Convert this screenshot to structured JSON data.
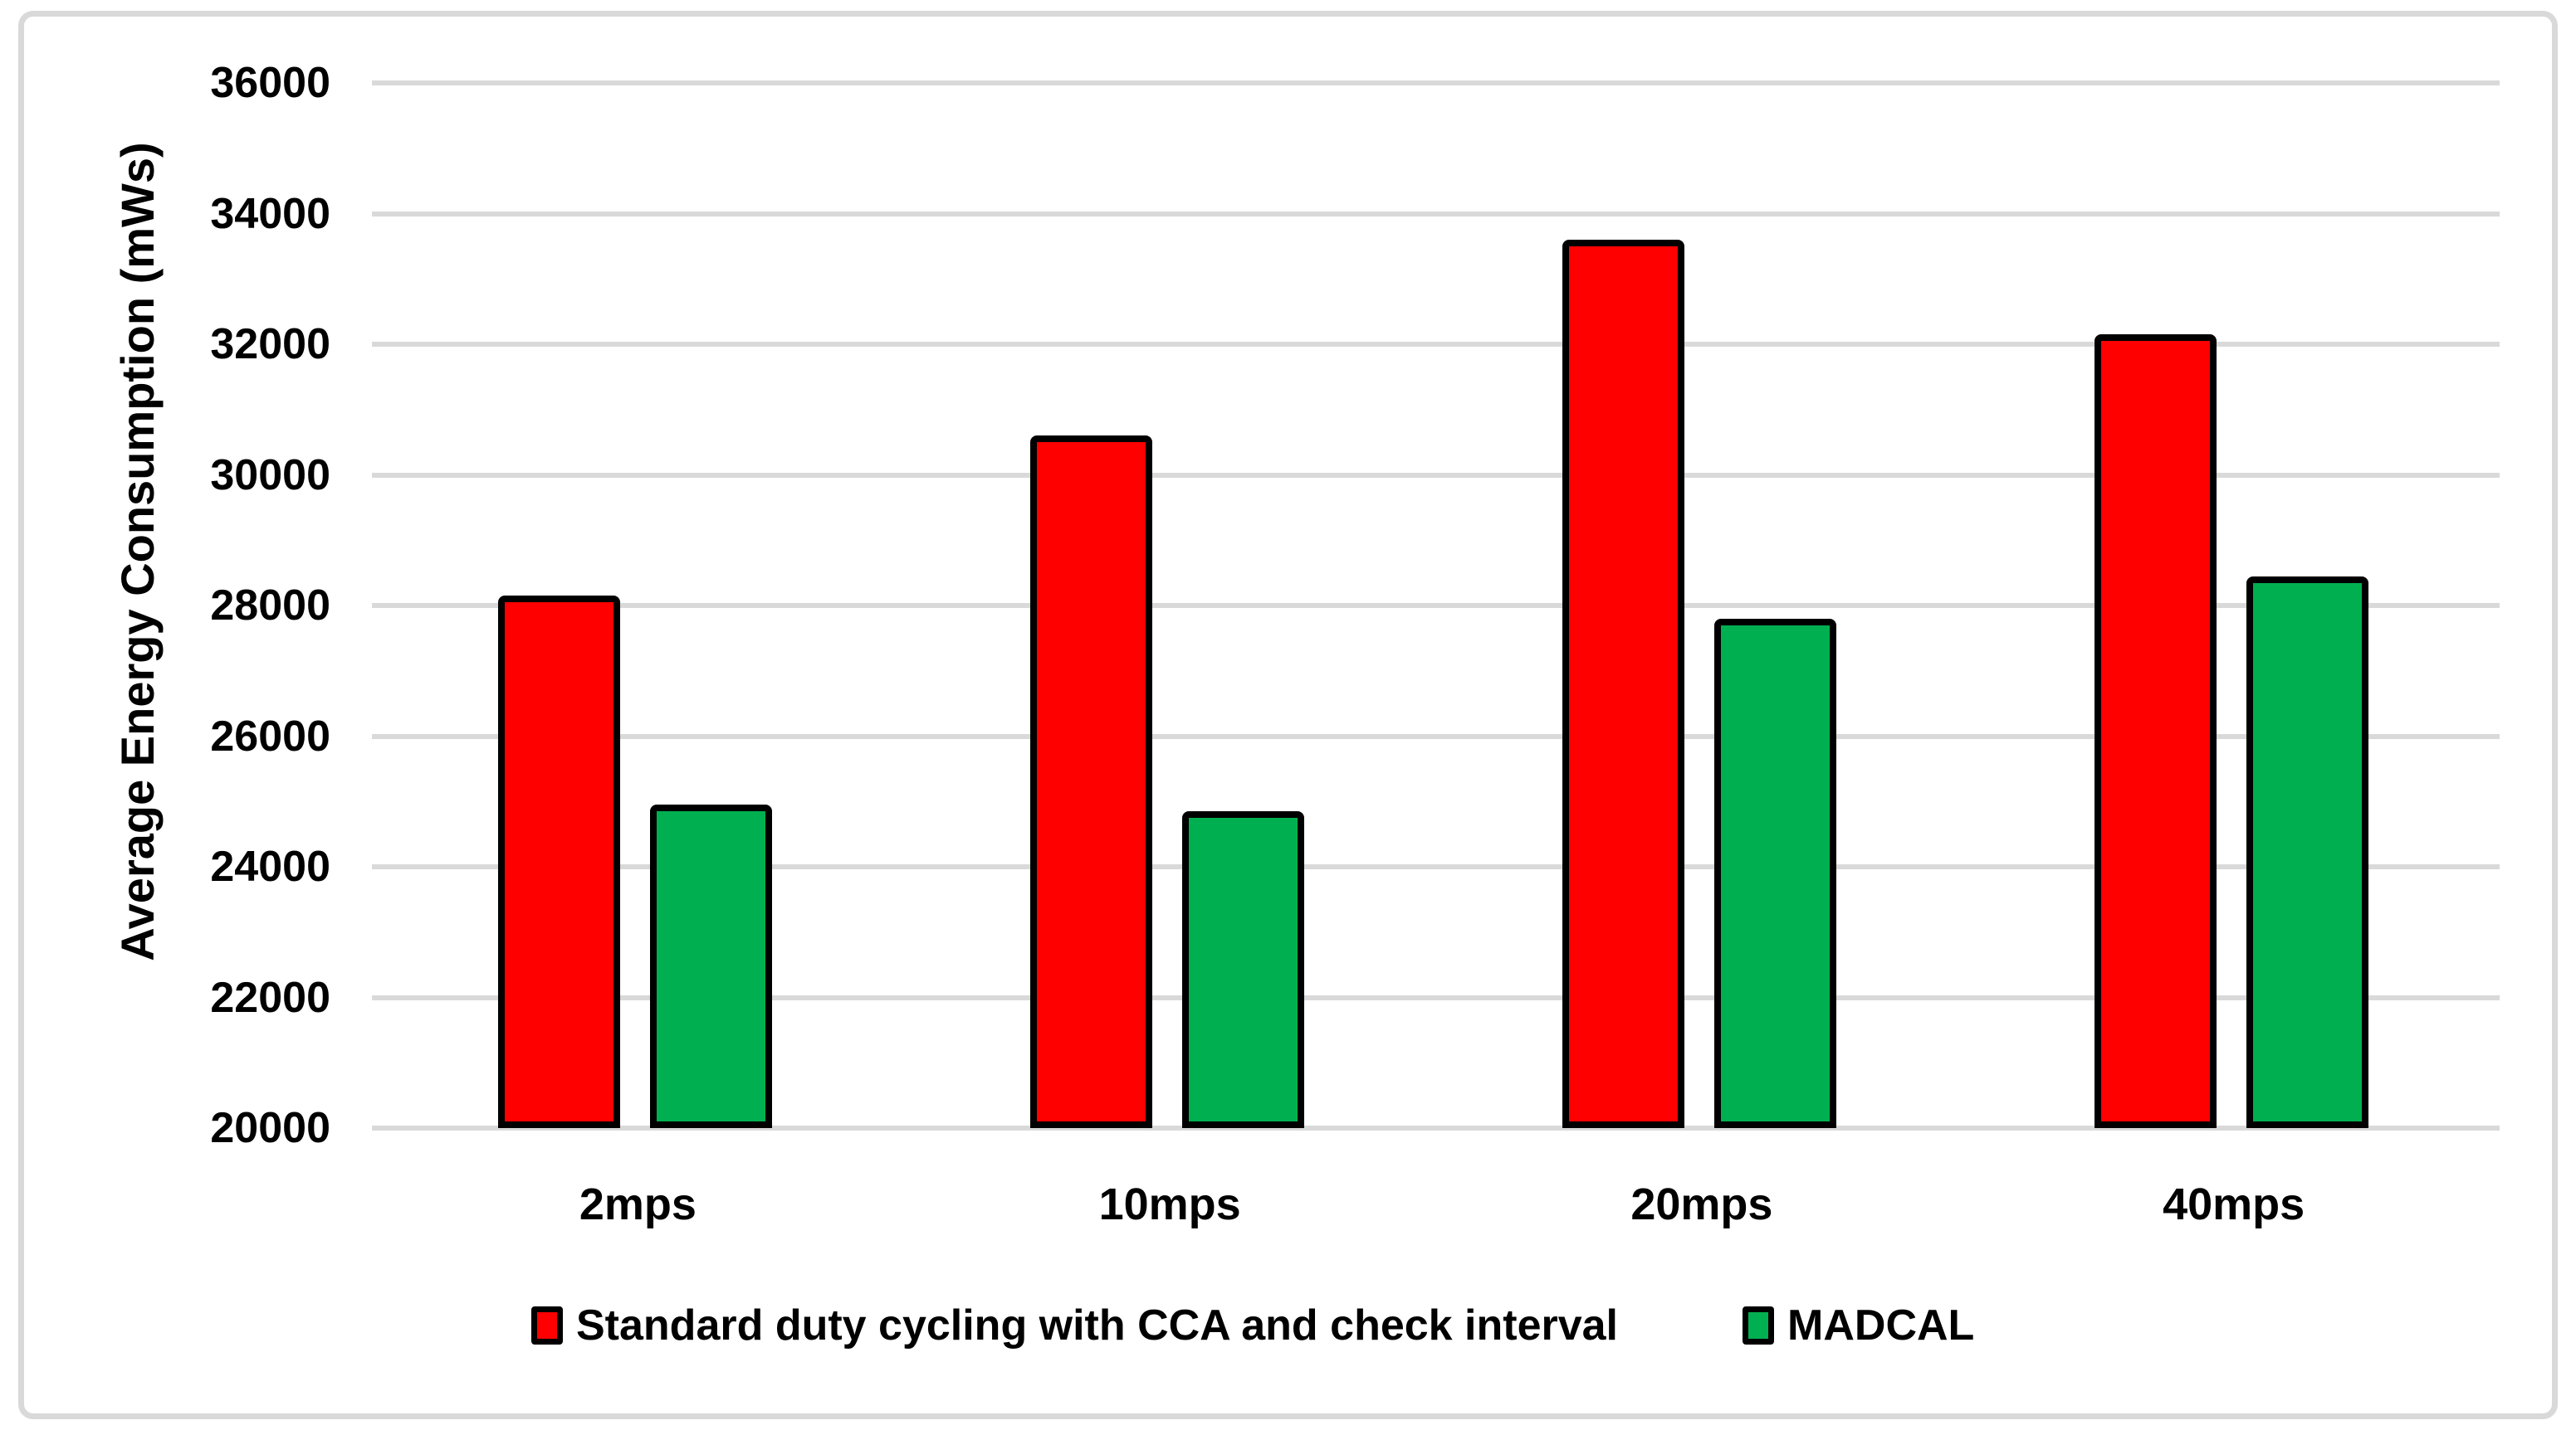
{
  "figure": {
    "background": "#ffffff",
    "border_color": "#d9d9d9"
  },
  "chart_data": {
    "type": "bar",
    "title": "",
    "categories": [
      "2mps",
      "10mps",
      "20mps",
      "40mps"
    ],
    "series": [
      {
        "name": "Standard duty cycling with CCA and check interval",
        "color": "#ff0000",
        "values": [
          28100,
          30550,
          33550,
          32100
        ]
      },
      {
        "name": "MADCAL",
        "color": "#00b050",
        "values": [
          24900,
          24800,
          27750,
          28400
        ]
      }
    ],
    "xlabel": "",
    "ylabel": "Average Energy Consumption (mWs)",
    "ylim": [
      20000,
      36000
    ],
    "ytick_step": 2000,
    "yticks": [
      20000,
      22000,
      24000,
      26000,
      28000,
      30000,
      32000,
      34000,
      36000
    ],
    "grid": true,
    "gridline_color": "#d9d9d9",
    "bar_border_color": "#000000",
    "text_color": "#000000",
    "legend_position": "bottom"
  }
}
